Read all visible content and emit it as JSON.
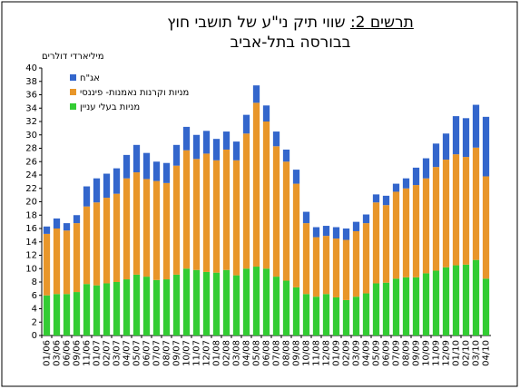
{
  "chart_data": {
    "type": "stacked_bar",
    "title_label": "תרשים 2:",
    "title": "שווי תיק ני\"ע של תושבי חוץ",
    "subtitle": "בבורסה בתל-אביב",
    "y_label": "מיליארדי דולרים",
    "categories": [
      "01/06",
      "03/06",
      "06/06",
      "09/06",
      "11/06",
      "01/07",
      "02/07",
      "03/07",
      "04/07",
      "05/07",
      "06/07",
      "07/07",
      "08/07",
      "09/07",
      "10/07",
      "11/07",
      "12/07",
      "01/08",
      "02/08",
      "03/08",
      "04/08",
      "05/08",
      "06/08",
      "07/08",
      "08/08",
      "09/08",
      "10/08",
      "11/08",
      "12/08",
      "01/09",
      "02/09",
      "03/09",
      "04/09",
      "05/09",
      "06/09",
      "07/09",
      "08/09",
      "09/09",
      "10/09",
      "11/09",
      "12/09",
      "01/10",
      "02/10",
      "03/10",
      "04/10"
    ],
    "series": [
      {
        "name": "מניות בעלי עניין",
        "color": "#33cc33",
        "values": [
          6,
          6.2,
          6.2,
          6.5,
          7.7,
          7.5,
          7.8,
          8,
          8.4,
          9.1,
          8.8,
          8.3,
          8.4,
          9.1,
          10,
          9.8,
          9.5,
          9.4,
          9.8,
          9,
          10,
          10.3,
          10,
          8.8,
          8.2,
          7.2,
          6.2,
          5.8,
          6.2,
          5.7,
          5.3,
          5.8,
          6.3,
          7.8,
          7.9,
          8.5,
          8.7,
          8.7,
          9.3,
          9.7,
          10.2,
          10.5,
          10.6,
          11.3,
          8.5
        ]
      },
      {
        "name": "מניות וקרנות נאמנות- פיננסי",
        "color": "#e8962a",
        "values": [
          9.2,
          9.8,
          9.5,
          10.3,
          11.6,
          12.4,
          12.8,
          13.2,
          15.1,
          15.3,
          14.6,
          14.8,
          14.4,
          16.3,
          17.7,
          16.6,
          17.7,
          16.8,
          18,
          17.2,
          20.2,
          24.5,
          22,
          19.5,
          17.8,
          15.5,
          10.6,
          8.9,
          8.7,
          8.8,
          9,
          9.8,
          10.5,
          12.1,
          11.6,
          13,
          13.3,
          13.8,
          14.2,
          15.5,
          16.1,
          16.6,
          16.1,
          16.8,
          15.3
        ]
      },
      {
        "name": "אג\"ח",
        "color": "#3366cc",
        "values": [
          1.1,
          1.5,
          1.1,
          1.2,
          3,
          3.6,
          3.6,
          3.8,
          3.5,
          4.1,
          3.9,
          2.9,
          3,
          3.1,
          3.5,
          3.6,
          3.4,
          3.2,
          2.7,
          2.8,
          2.8,
          2.6,
          2.4,
          2.2,
          1.8,
          2.1,
          1.7,
          1.5,
          1.5,
          1.7,
          1.7,
          1.4,
          1.3,
          1.2,
          1.4,
          1.2,
          1.5,
          2.6,
          3,
          3.5,
          3.9,
          5.7,
          5.8,
          6.4,
          8.9
        ]
      }
    ],
    "ylim": [
      0,
      40
    ],
    "yticks": [
      0,
      2,
      4,
      6,
      8,
      10,
      12,
      14,
      16,
      18,
      20,
      22,
      24,
      26,
      28,
      30,
      32,
      34,
      36,
      38,
      40
    ],
    "grid": false
  }
}
